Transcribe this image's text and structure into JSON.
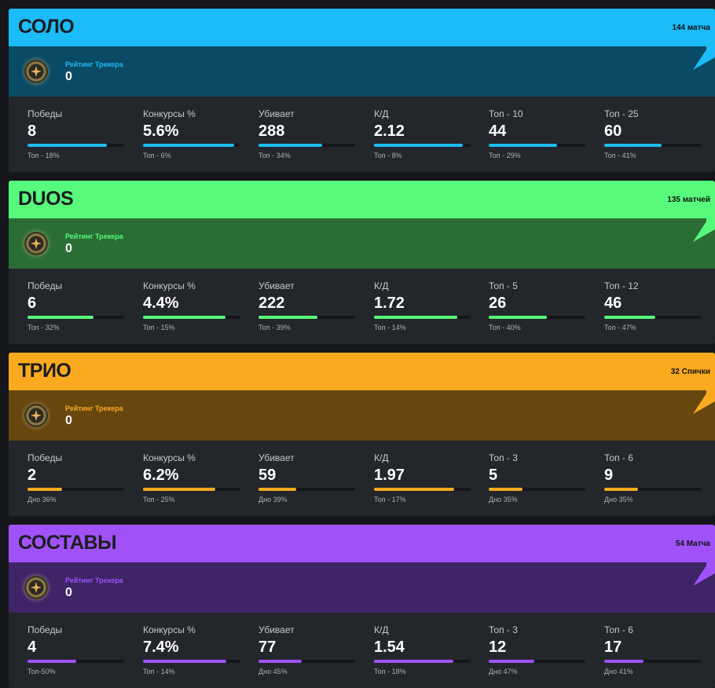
{
  "modes": [
    {
      "title": "СОЛО",
      "matches": "144 матча",
      "accent": "#1bbcf8",
      "band": "#0b4a64",
      "rating_label": "Рейтинг Трекера",
      "rating_value": "0",
      "stats": [
        {
          "label": "Победы",
          "value": "8",
          "rank": "Топ - 18%",
          "fill": 0.82
        },
        {
          "label": "Конкурсы %",
          "value": "5.6%",
          "rank": "Топ - 6%",
          "fill": 0.94
        },
        {
          "label": "Убивает",
          "value": "288",
          "rank": "Топ - 34%",
          "fill": 0.66
        },
        {
          "label": "К/Д",
          "value": "2.12",
          "rank": "Топ - 8%",
          "fill": 0.92
        },
        {
          "label": "Топ - 10",
          "value": "44",
          "rank": "Топ - 29%",
          "fill": 0.71
        },
        {
          "label": "Топ - 25",
          "value": "60",
          "rank": "Топ - 41%",
          "fill": 0.59
        }
      ]
    },
    {
      "title": "DUOS",
      "matches": "135 матчей",
      "accent": "#57fa7b",
      "band": "#2b6e35",
      "rating_label": "Рейтинг Трекера",
      "rating_value": "0",
      "stats": [
        {
          "label": "Победы",
          "value": "6",
          "rank": "Топ - 32%",
          "fill": 0.68
        },
        {
          "label": "Конкурсы %",
          "value": "4.4%",
          "rank": "Топ - 15%",
          "fill": 0.85
        },
        {
          "label": "Убивает",
          "value": "222",
          "rank": "Топ - 39%",
          "fill": 0.61
        },
        {
          "label": "К/Д",
          "value": "1.72",
          "rank": "Топ - 14%",
          "fill": 0.86
        },
        {
          "label": "Топ - 5",
          "value": "26",
          "rank": "Топ - 40%",
          "fill": 0.6
        },
        {
          "label": "Топ - 12",
          "value": "46",
          "rank": "Топ - 47%",
          "fill": 0.53
        }
      ]
    },
    {
      "title": "ТРИО",
      "matches": "32 Спички",
      "accent": "#fbaa1f",
      "band": "#68470f",
      "rating_label": "Рейтинг Трекера",
      "rating_value": "0",
      "stats": [
        {
          "label": "Победы",
          "value": "2",
          "rank": "Дно 36%",
          "fill": 0.36
        },
        {
          "label": "Конкурсы %",
          "value": "6.2%",
          "rank": "Топ - 25%",
          "fill": 0.75
        },
        {
          "label": "Убивает",
          "value": "59",
          "rank": "Дно 39%",
          "fill": 0.39
        },
        {
          "label": "К/Д",
          "value": "1.97",
          "rank": "Топ - 17%",
          "fill": 0.83
        },
        {
          "label": "Топ - 3",
          "value": "5",
          "rank": "Дно 35%",
          "fill": 0.35
        },
        {
          "label": "Топ - 6",
          "value": "9",
          "rank": "Дно 35%",
          "fill": 0.35
        }
      ]
    },
    {
      "title": "СОСТАВЫ",
      "matches": "54 Матча",
      "accent": "#a052f8",
      "band": "#3f2468",
      "rating_label": "Рейтинг Трекера",
      "rating_value": "0",
      "stats": [
        {
          "label": "Победы",
          "value": "4",
          "rank": "Топ-50%",
          "fill": 0.5
        },
        {
          "label": "Конкурсы %",
          "value": "7.4%",
          "rank": "Топ - 14%",
          "fill": 0.86
        },
        {
          "label": "Убивает",
          "value": "77",
          "rank": "Дно 45%",
          "fill": 0.45
        },
        {
          "label": "К/Д",
          "value": "1.54",
          "rank": "Топ - 18%",
          "fill": 0.82
        },
        {
          "label": "Топ - 3",
          "value": "12",
          "rank": "Дно 47%",
          "fill": 0.47
        },
        {
          "label": "Топ - 6",
          "value": "17",
          "rank": "Дно 41%",
          "fill": 0.41
        }
      ]
    }
  ]
}
